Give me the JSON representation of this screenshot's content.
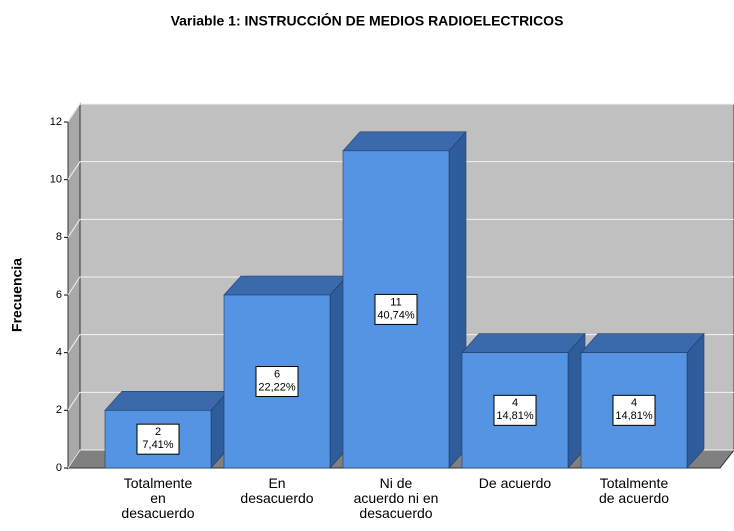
{
  "chart_data": {
    "type": "bar3d",
    "title": "Variable 1: INSTRUCCIÓN DE MEDIOS RADIOELECTRICOS",
    "y_label": "Frecuencia",
    "categories": [
      "Totalmente\nen\ndesacuerdo",
      "En\ndesacuerdo",
      "Ni de\nacuerdo ni en\ndesacuerdo",
      "De acuerdo",
      "Totalmente\nde acuerdo"
    ],
    "values": [
      2,
      6,
      11,
      4,
      4
    ],
    "percent_labels": [
      "7,41%",
      "22,22%",
      "40,74%",
      "14,81%",
      "14,81%"
    ],
    "color": "#5593e3",
    "ylim": [
      0,
      12
    ],
    "yticks": [
      0,
      2,
      4,
      6,
      8,
      10,
      12
    ],
    "grid": true
  }
}
